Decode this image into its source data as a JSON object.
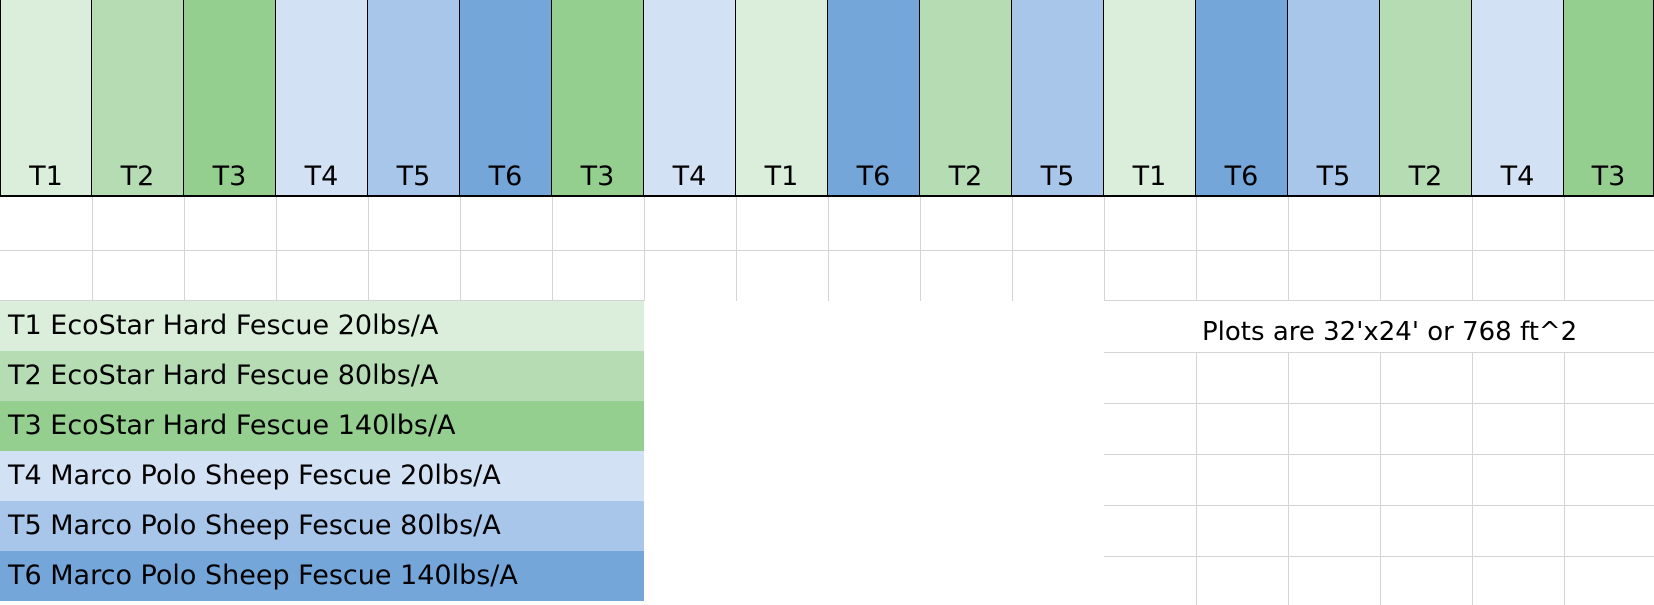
{
  "colors": {
    "T1": "#dbeedc",
    "T2": "#b6dcb4",
    "T3": "#94cf8f",
    "T4": "#d2e1f3",
    "T5": "#a7c6ea",
    "T6": "#75a6da"
  },
  "plots": [
    "T1",
    "T2",
    "T3",
    "T4",
    "T5",
    "T6",
    "T3",
    "T4",
    "T1",
    "T6",
    "T2",
    "T5",
    "T1",
    "T6",
    "T5",
    "T2",
    "T4",
    "T3"
  ],
  "legend": [
    {
      "code": "T1",
      "text": "T1 EcoStar Hard Fescue 20lbs/A"
    },
    {
      "code": "T2",
      "text": "T2 EcoStar Hard Fescue 80lbs/A"
    },
    {
      "code": "T3",
      "text": "T3 EcoStar Hard Fescue 140lbs/A"
    },
    {
      "code": "T4",
      "text": "T4 Marco Polo Sheep Fescue 20lbs/A"
    },
    {
      "code": "T5",
      "text": "T5 Marco Polo Sheep Fescue 80lbs/A"
    },
    {
      "code": "T6",
      "text": "T6 Marco Polo Sheep Fescue 140lbs/A"
    }
  ],
  "note": "Plots are 32'x24' or 768 ft^2"
}
